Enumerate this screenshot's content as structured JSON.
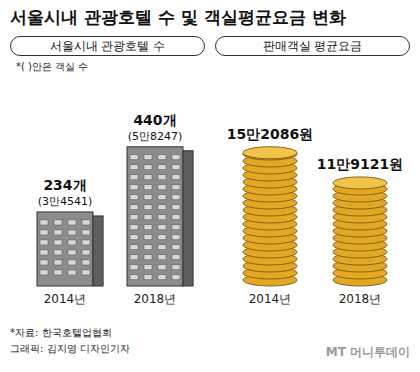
{
  "title": "서울시내 관광호텔 수 및 객실평균요금 변화",
  "source": "*자료: 한국호텔업협회",
  "credit": "그래픽: 김지영 디자인기자",
  "watermark": "MT 머니투데이",
  "chart_data": [
    {
      "type": "bar",
      "title": "서울시내 관광호텔 수",
      "annotation": "*( )안은 객실 수",
      "categories": [
        "2014년",
        "2018년"
      ],
      "values": [
        234,
        440
      ],
      "value_labels": [
        "234개",
        "440개"
      ],
      "room_counts": [
        34541,
        58247
      ],
      "room_count_labels": [
        "(3만4541)",
        "(5만8247)"
      ],
      "color": "#8c8c8c",
      "marker": "building",
      "data_labels": true,
      "tick_labels": "x"
    },
    {
      "type": "bar",
      "title": "판매객실 평균요금",
      "categories": [
        "2014년",
        "2018년"
      ],
      "values": [
        152086,
        119121
      ],
      "value_labels": [
        "15만2086원",
        "11만9121원"
      ],
      "color": "#e3a823",
      "marker": "coin",
      "data_labels": true,
      "tick_labels": "x"
    }
  ]
}
